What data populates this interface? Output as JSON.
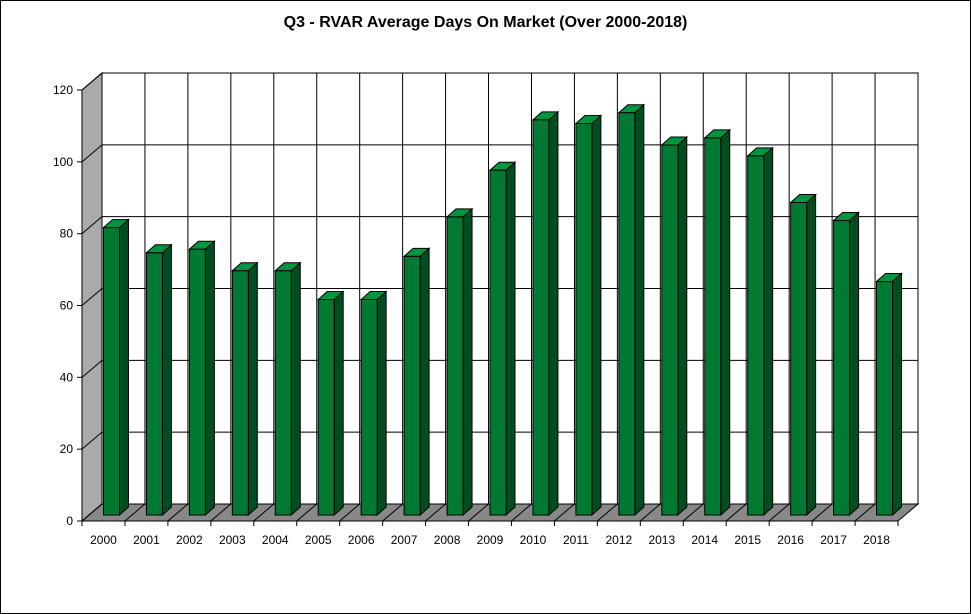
{
  "chart_data": {
    "type": "bar",
    "title": "Q3 - RVAR Average Days On Market (Over 2000-2018)",
    "xlabel": "",
    "ylabel": "",
    "categories": [
      "2000",
      "2001",
      "2002",
      "2003",
      "2004",
      "2005",
      "2006",
      "2007",
      "2008",
      "2009",
      "2010",
      "2011",
      "2012",
      "2013",
      "2014",
      "2015",
      "2016",
      "2017",
      "2018"
    ],
    "series": [
      {
        "values": [
          80,
          73,
          74,
          68,
          68,
          60,
          60,
          72,
          83,
          96,
          110,
          109,
          112,
          103,
          105,
          100,
          87,
          82,
          65
        ]
      }
    ],
    "ylim": [
      0,
      120
    ],
    "yticks": [
      0,
      20,
      40,
      60,
      80,
      100,
      120
    ],
    "grid": true,
    "legend": "none",
    "style": "3d-column",
    "colors": {
      "bar_front": "#007a33",
      "bar_side": "#004d1f",
      "bar_top": "#00963f",
      "wall": "#aaaaaa",
      "floor": "#888888",
      "grid": "#000000"
    }
  }
}
